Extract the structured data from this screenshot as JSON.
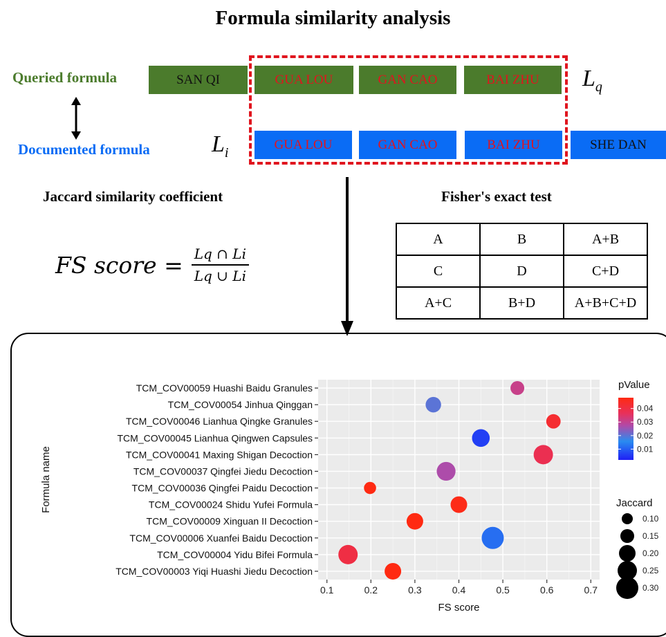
{
  "title": "Formula similarity analysis",
  "queried_label": "Queried formula",
  "documented_label": "Documented formula",
  "lq": {
    "base": "L",
    "sub": "q"
  },
  "li": {
    "base": "L",
    "sub": "i"
  },
  "queried_herbs": [
    "SAN QI",
    "GUA LOU",
    "GAN CAO",
    "BAI ZHU"
  ],
  "documented_herbs": [
    "GUA LOU",
    "GAN CAO",
    "BAI ZHU",
    "SHE DAN"
  ],
  "jaccard_heading": "Jaccard similarity coefficient",
  "fisher_heading": "Fisher's exact test",
  "fs_formula": {
    "lhs": "FS score =",
    "numerator": "Lq ∩ Li",
    "denominator": "Lq ∪ Li"
  },
  "fisher_table": [
    [
      "A",
      "B",
      "A+B"
    ],
    [
      "C",
      "D",
      "C+D"
    ],
    [
      "A+C",
      "B+D",
      "A+B+C+D"
    ]
  ],
  "colors": {
    "green": "#4b7b2c",
    "blue": "#0a6cf5",
    "red": "#e0141e"
  },
  "chart_data": {
    "type": "scatter",
    "xlabel": "FS score",
    "ylabel": "Formula name",
    "xlim": [
      0.08,
      0.72
    ],
    "xticks": [
      "0.1",
      "0.2",
      "0.3",
      "0.4",
      "0.5",
      "0.6",
      "0.7"
    ],
    "grid": true,
    "categories": [
      "TCM_COV00059 Huashi Baidu Granules",
      "TCM_COV00054 Jinhua Qinggan",
      "TCM_COV00046 Lianhua Qingke Granules",
      "TCM_COV00045 Lianhua Qingwen Capsules",
      "TCM_COV00041 Maxing Shigan Decoction",
      "TCM_COV00037 Qingfei Jiedu Decoction",
      "TCM_COV00036 Qingfei Paidu Decoction",
      "TCM_COV00024 Shidu Yufei Formula",
      "TCM_COV00009 Xinguan II Decoction",
      "TCM_COV00006 Xuanfei Baidu Decoction",
      "TCM_COV00004 Yidu Bifei Formula",
      "TCM_COV00003 Yiqi Huashi Jiedu Decoction"
    ],
    "points": [
      {
        "fs": 0.533,
        "pvalue": 0.031,
        "jaccard": 0.15
      },
      {
        "fs": 0.342,
        "pvalue": 0.02,
        "jaccard": 0.18
      },
      {
        "fs": 0.615,
        "pvalue": 0.043,
        "jaccard": 0.16
      },
      {
        "fs": 0.45,
        "pvalue": 0.006,
        "jaccard": 0.22
      },
      {
        "fs": 0.592,
        "pvalue": 0.038,
        "jaccard": 0.25
      },
      {
        "fs": 0.371,
        "pvalue": 0.027,
        "jaccard": 0.24
      },
      {
        "fs": 0.198,
        "pvalue": 0.048,
        "jaccard": 0.12
      },
      {
        "fs": 0.4,
        "pvalue": 0.047,
        "jaccard": 0.2
      },
      {
        "fs": 0.3,
        "pvalue": 0.048,
        "jaccard": 0.2
      },
      {
        "fs": 0.477,
        "pvalue": 0.012,
        "jaccard": 0.3
      },
      {
        "fs": 0.148,
        "pvalue": 0.04,
        "jaccard": 0.25
      },
      {
        "fs": 0.25,
        "pvalue": 0.048,
        "jaccard": 0.2
      }
    ],
    "color_legend": {
      "title": "pValue",
      "labels": [
        "0.04",
        "0.03",
        "0.02",
        "0.01"
      ],
      "values": [
        0.04,
        0.03,
        0.02,
        0.01
      ],
      "range": [
        0.002,
        0.048
      ]
    },
    "size_legend": {
      "title": "Jaccard",
      "labels": [
        "0.10",
        "0.15",
        "0.20",
        "0.25",
        "0.30"
      ],
      "values": [
        0.1,
        0.15,
        0.2,
        0.25,
        0.3
      ]
    }
  }
}
